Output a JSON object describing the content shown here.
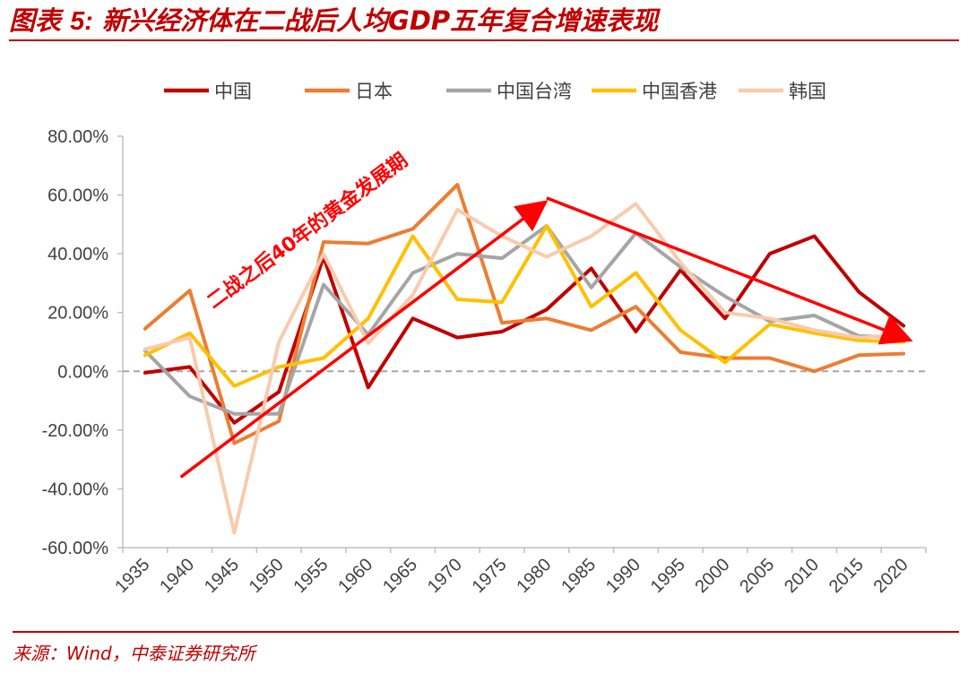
{
  "header": {
    "title_prefix": "图表",
    "title_number": "5:",
    "title_text": "新兴经济体在二战后人均GDP五年复合增速表现"
  },
  "footer": {
    "source": "来源：Wind，中泰证券研究所"
  },
  "annotation": {
    "text": "二战之后40年的黄金发展期"
  },
  "colors": {
    "brand": "#c00000",
    "arrow": "#ff0000",
    "zero_line": "#a6a6a6"
  },
  "chart_data": {
    "type": "line",
    "title": "",
    "xlabel": "",
    "ylabel": "",
    "ylim": [
      -60,
      80
    ],
    "y_ticks": [
      "80.00%",
      "60.00%",
      "40.00%",
      "20.00%",
      "0.00%",
      "-20.00%",
      "-40.00%",
      "-60.00%"
    ],
    "y_tick_values": [
      80,
      60,
      40,
      20,
      0,
      -20,
      -40,
      -60
    ],
    "legend_position": "top",
    "grid": false,
    "categories": [
      "1935",
      "1940",
      "1945",
      "1950",
      "1955",
      "1960",
      "1965",
      "1970",
      "1975",
      "1980",
      "1985",
      "1990",
      "1995",
      "2000",
      "2005",
      "2010",
      "2015",
      "2020"
    ],
    "series": [
      {
        "name": "中国",
        "color": "#c00000",
        "values": [
          -0.5,
          1.5,
          -17.5,
          -7,
          39,
          -5.5,
          18,
          11.5,
          13.5,
          21,
          35,
          13.5,
          34.5,
          18,
          40,
          46,
          27,
          15.5
        ]
      },
      {
        "name": "日本",
        "color": "#ed7d31",
        "values": [
          14.5,
          27.5,
          -24.5,
          -17,
          44,
          43.5,
          48.5,
          63.5,
          16.5,
          18,
          14,
          22,
          6.5,
          4.5,
          4.5,
          0,
          5.5,
          6
        ]
      },
      {
        "name": "中国台湾",
        "color": "#a5a5a5",
        "values": [
          7,
          -8.5,
          -14.5,
          -14.5,
          29.5,
          12.5,
          33.5,
          40,
          38.5,
          49.5,
          28.5,
          47,
          35.5,
          25.5,
          17,
          19,
          12,
          11.5
        ]
      },
      {
        "name": "中国香港",
        "color": "#ffc000",
        "values": [
          5.5,
          13,
          -5,
          1.5,
          4.5,
          18,
          46,
          24.5,
          23.5,
          49.5,
          22,
          33.5,
          14,
          3,
          16,
          13,
          10.5,
          10
        ]
      },
      {
        "name": "韩国",
        "color": "#f8cbad",
        "values": [
          7.5,
          11.5,
          -55,
          10,
          40,
          9.5,
          26,
          55,
          46,
          39,
          46,
          57,
          37,
          20,
          18,
          14,
          11.5,
          12.5
        ]
      }
    ],
    "annotation_arrows": [
      {
        "from": [
          "1939",
          -36
        ],
        "to": [
          "1980",
          57
        ],
        "label": "二战之后40年的黄金发展期"
      },
      {
        "from": [
          "1980",
          59
        ],
        "to": [
          "2020",
          11
        ],
        "label": ""
      }
    ]
  }
}
